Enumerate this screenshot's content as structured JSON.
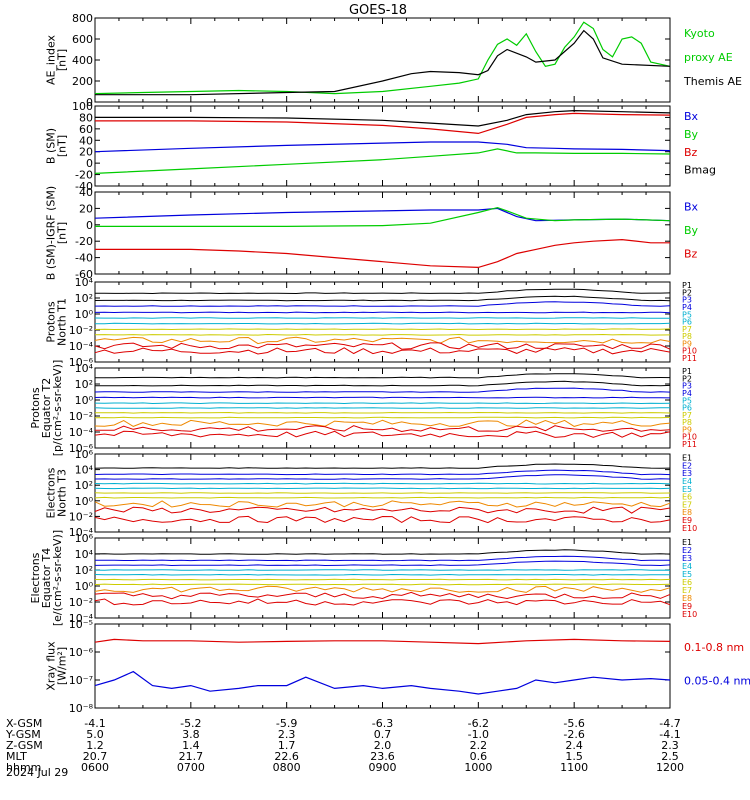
{
  "title": "GOES-18",
  "date_label": "2024 Jul 29",
  "colors": {
    "black": "#000000",
    "red": "#dd0000",
    "green": "#00cc00",
    "blue": "#0000dd",
    "cyan": "#00b0d0",
    "orange": "#ee8800",
    "yellow": "#cccc00"
  },
  "ephemeris": {
    "row_labels": [
      "X-GSM",
      "Y-GSM",
      "Z-GSM",
      "MLT",
      "hhmm"
    ],
    "columns": [
      [
        "-4.1",
        "5.0",
        "1.2",
        "20.7",
        "0600"
      ],
      [
        "-5.2",
        "3.8",
        "1.4",
        "21.7",
        "0700"
      ],
      [
        "-5.9",
        "2.3",
        "1.7",
        "22.6",
        "0800"
      ],
      [
        "-6.3",
        "0.7",
        "2.0",
        "23.6",
        "0900"
      ],
      [
        "-6.2",
        "-1.0",
        "2.2",
        "0.6",
        "1000"
      ],
      [
        "-5.6",
        "-2.6",
        "2.4",
        "1.5",
        "1100"
      ],
      [
        "-4.7",
        "-4.1",
        "2.3",
        "2.5",
        "1200"
      ]
    ]
  },
  "chart_data": [
    {
      "type": "line",
      "id": "ae",
      "ylabel": [
        "AE_index",
        "[nT]"
      ],
      "ylim": [
        0,
        800
      ],
      "yticks": [
        "0",
        "200",
        "400",
        "600",
        "800"
      ],
      "x_range_hours": [
        6,
        12
      ],
      "legend": [
        {
          "text": "Kyoto",
          "color": "green"
        },
        {
          "text": "proxy AE",
          "color": "green"
        },
        {
          "text": "Themis AE",
          "color": "black"
        }
      ],
      "series": [
        {
          "color": "green",
          "x": [
            6,
            6.5,
            7,
            7.5,
            8,
            8.5,
            9,
            9.5,
            9.8,
            10,
            10.1,
            10.2,
            10.3,
            10.4,
            10.5,
            10.6,
            10.7,
            10.8,
            10.9,
            11,
            11.1,
            11.2,
            11.3,
            11.4,
            11.5,
            11.6,
            11.7,
            11.8,
            12
          ],
          "values": [
            80,
            90,
            100,
            110,
            100,
            80,
            100,
            150,
            180,
            220,
            400,
            550,
            600,
            540,
            650,
            480,
            340,
            360,
            520,
            620,
            760,
            700,
            500,
            430,
            600,
            620,
            560,
            380,
            340
          ]
        },
        {
          "color": "black",
          "x": [
            6,
            7,
            8,
            8.5,
            9,
            9.3,
            9.5,
            9.8,
            10,
            10.1,
            10.2,
            10.3,
            10.5,
            10.6,
            10.8,
            11,
            11.1,
            11.2,
            11.3,
            11.5,
            12
          ],
          "values": [
            70,
            70,
            90,
            100,
            200,
            270,
            290,
            280,
            260,
            300,
            440,
            500,
            430,
            380,
            400,
            560,
            680,
            600,
            420,
            360,
            340
          ]
        }
      ]
    },
    {
      "type": "line",
      "id": "bsm",
      "ylabel": [
        "B (SM)",
        "[nT]"
      ],
      "ylim": [
        -40,
        100
      ],
      "yticks": [
        "-40",
        "-20",
        "0",
        "20",
        "40",
        "60",
        "80",
        "100"
      ],
      "x_range_hours": [
        6,
        12
      ],
      "legend": [
        {
          "text": "Bx",
          "color": "blue"
        },
        {
          "text": "By",
          "color": "green"
        },
        {
          "text": "Bz",
          "color": "red"
        },
        {
          "text": "Bmag",
          "color": "black"
        }
      ],
      "series": [
        {
          "color": "black",
          "x": [
            6,
            7,
            8,
            9,
            9.5,
            10,
            10.3,
            10.5,
            10.8,
            11,
            11.5,
            12
          ],
          "values": [
            80,
            80,
            79,
            75,
            70,
            65,
            75,
            85,
            90,
            92,
            90,
            88
          ]
        },
        {
          "color": "red",
          "x": [
            6,
            7,
            8,
            9,
            9.5,
            10,
            10.3,
            10.5,
            10.8,
            11,
            11.5,
            12
          ],
          "values": [
            74,
            74,
            72,
            66,
            60,
            52,
            68,
            80,
            85,
            87,
            85,
            84
          ]
        },
        {
          "color": "blue",
          "x": [
            6,
            7,
            8,
            9,
            9.5,
            10,
            10.3,
            10.5,
            10.8,
            11,
            11.5,
            12
          ],
          "values": [
            20,
            26,
            31,
            35,
            37,
            37,
            33,
            27,
            26,
            25,
            24,
            22
          ]
        },
        {
          "color": "green",
          "x": [
            6,
            7,
            8,
            9,
            9.5,
            10,
            10.2,
            10.4,
            10.6,
            11,
            11.5,
            12
          ],
          "values": [
            -18,
            -10,
            -2,
            6,
            12,
            18,
            25,
            18,
            18,
            17,
            17,
            16
          ]
        }
      ]
    },
    {
      "type": "line",
      "id": "bsm_igrf",
      "ylabel": [
        "B (SM)-IGRF (SM)",
        "[nT]"
      ],
      "ylim": [
        -60,
        40
      ],
      "yticks": [
        "-60",
        "-40",
        "-20",
        "0",
        "20",
        "40"
      ],
      "x_range_hours": [
        6,
        12
      ],
      "legend": [
        {
          "text": "Bx",
          "color": "blue"
        },
        {
          "text": "By",
          "color": "green"
        },
        {
          "text": "Bz",
          "color": "red"
        }
      ],
      "series": [
        {
          "color": "blue",
          "x": [
            6,
            7,
            8,
            9,
            9.5,
            10,
            10.2,
            10.4,
            10.6,
            11,
            11.5,
            12
          ],
          "values": [
            8,
            12,
            15,
            17,
            18,
            18,
            20,
            10,
            5,
            6,
            7,
            5
          ]
        },
        {
          "color": "green",
          "x": [
            6,
            7,
            8,
            9,
            9.5,
            10,
            10.2,
            10.3,
            10.5,
            10.8,
            11,
            11.5,
            12
          ],
          "values": [
            -2,
            -2,
            -2,
            -1,
            2,
            15,
            21,
            17,
            8,
            5,
            6,
            7,
            5
          ]
        },
        {
          "color": "red",
          "x": [
            6,
            7,
            7.5,
            8,
            8.5,
            9,
            9.5,
            10,
            10.2,
            10.4,
            10.6,
            10.8,
            11,
            11.2,
            11.5,
            11.8,
            12
          ],
          "values": [
            -30,
            -30,
            -32,
            -35,
            -40,
            -45,
            -50,
            -52,
            -45,
            -35,
            -30,
            -25,
            -22,
            -20,
            -18,
            -22,
            -22
          ]
        }
      ]
    },
    {
      "type": "line",
      "id": "prot_t1",
      "ylabel": [
        "Protons",
        "North T1"
      ],
      "ylim_log": [
        -6,
        4
      ],
      "yticks": [
        "10⁻⁶",
        "10⁻⁴",
        "10⁻²",
        "10⁰",
        "10²",
        "10⁴"
      ],
      "x_range_hours": [
        6,
        12
      ],
      "legend": [
        {
          "text": "P1",
          "color": "black"
        },
        {
          "text": "P2",
          "color": "black"
        },
        {
          "text": "P3",
          "color": "blue"
        },
        {
          "text": "P4",
          "color": "blue"
        },
        {
          "text": "P5",
          "color": "cyan"
        },
        {
          "text": "P6",
          "color": "cyan"
        },
        {
          "text": "P7",
          "color": "yellow"
        },
        {
          "text": "P8",
          "color": "yellow"
        },
        {
          "text": "P9",
          "color": "orange"
        },
        {
          "text": "P10",
          "color": "red"
        },
        {
          "text": "P11",
          "color": "red"
        }
      ],
      "levels_log": [
        2.6,
        1.7,
        1.0,
        0.2,
        -0.5,
        -1.2,
        -1.9,
        -2.6,
        -3.3,
        -4.0,
        -4.6
      ],
      "level_colors": [
        "black",
        "black",
        "blue",
        "blue",
        "cyan",
        "cyan",
        "yellow",
        "yellow",
        "orange",
        "red",
        "red"
      ]
    },
    {
      "type": "line",
      "id": "prot_t2",
      "ylabel": [
        "Protons",
        "Equator T2",
        "[p/(cm²-s-sr-keV)]"
      ],
      "ylim_log": [
        -6,
        4
      ],
      "yticks": [
        "10⁻⁶",
        "10⁻⁴",
        "10⁻²",
        "10⁰",
        "10²",
        "10⁴"
      ],
      "x_range_hours": [
        6,
        12
      ],
      "legend": [
        {
          "text": "P1",
          "color": "black"
        },
        {
          "text": "P2",
          "color": "black"
        },
        {
          "text": "P3",
          "color": "blue"
        },
        {
          "text": "P4",
          "color": "blue"
        },
        {
          "text": "P5",
          "color": "cyan"
        },
        {
          "text": "P6",
          "color": "cyan"
        },
        {
          "text": "P7",
          "color": "yellow"
        },
        {
          "text": "P8",
          "color": "yellow"
        },
        {
          "text": "P9",
          "color": "orange"
        },
        {
          "text": "P10",
          "color": "red"
        },
        {
          "text": "P11",
          "color": "red"
        }
      ],
      "levels_log": [
        2.8,
        1.8,
        1.0,
        0.3,
        -0.4,
        -1.0,
        -1.6,
        -2.2,
        -2.9,
        -3.6,
        -4.3
      ],
      "level_colors": [
        "black",
        "black",
        "blue",
        "blue",
        "cyan",
        "cyan",
        "yellow",
        "yellow",
        "orange",
        "red",
        "red"
      ]
    },
    {
      "type": "line",
      "id": "elec_t3",
      "ylabel": [
        "Electrons",
        "North T3"
      ],
      "ylim_log": [
        -4,
        6
      ],
      "yticks": [
        "10⁻⁴",
        "10⁻²",
        "10⁰",
        "10²",
        "10⁴",
        "10⁶"
      ],
      "x_range_hours": [
        6,
        12
      ],
      "legend": [
        {
          "text": "E1",
          "color": "black"
        },
        {
          "text": "E2",
          "color": "blue"
        },
        {
          "text": "E3",
          "color": "blue"
        },
        {
          "text": "E4",
          "color": "cyan"
        },
        {
          "text": "E5",
          "color": "cyan"
        },
        {
          "text": "E6",
          "color": "yellow"
        },
        {
          "text": "E7",
          "color": "yellow"
        },
        {
          "text": "E8",
          "color": "orange"
        },
        {
          "text": "E9",
          "color": "red"
        },
        {
          "text": "E10",
          "color": "red"
        }
      ],
      "levels_log": [
        4.2,
        3.4,
        2.8,
        2.2,
        1.6,
        1.0,
        0.4,
        -0.4,
        -1.2,
        -2.4
      ],
      "level_colors": [
        "black",
        "blue",
        "blue",
        "cyan",
        "cyan",
        "yellow",
        "yellow",
        "orange",
        "red",
        "red"
      ]
    },
    {
      "type": "line",
      "id": "elec_t4",
      "ylabel": [
        "Electrons",
        "Equator T4",
        "[e/(cm²-s-sr-keV)]"
      ],
      "ylim_log": [
        -4,
        6
      ],
      "yticks": [
        "10⁻⁴",
        "10⁻²",
        "10⁰",
        "10²",
        "10⁴",
        "10⁶"
      ],
      "x_range_hours": [
        6,
        12
      ],
      "legend": [
        {
          "text": "E1",
          "color": "black"
        },
        {
          "text": "E2",
          "color": "blue"
        },
        {
          "text": "E3",
          "color": "blue"
        },
        {
          "text": "E4",
          "color": "cyan"
        },
        {
          "text": "E5",
          "color": "cyan"
        },
        {
          "text": "E6",
          "color": "yellow"
        },
        {
          "text": "E7",
          "color": "yellow"
        },
        {
          "text": "E8",
          "color": "orange"
        },
        {
          "text": "E9",
          "color": "red"
        },
        {
          "text": "E10",
          "color": "red"
        }
      ],
      "levels_log": [
        4.0,
        3.2,
        2.6,
        2.0,
        1.4,
        0.8,
        0.2,
        -0.4,
        -1.2,
        -2.0
      ],
      "level_colors": [
        "black",
        "blue",
        "blue",
        "cyan",
        "cyan",
        "yellow",
        "yellow",
        "orange",
        "red",
        "red"
      ]
    },
    {
      "type": "line",
      "id": "xray",
      "ylabel": [
        "Xray flux",
        "[W/m²]"
      ],
      "ylim_log": [
        -8,
        -5
      ],
      "yticks": [
        "10⁻⁸",
        "10⁻⁷",
        "10⁻⁶",
        "10⁻⁵"
      ],
      "x_range_hours": [
        6,
        12
      ],
      "legend": [
        {
          "text": "0.1-0.8 nm",
          "color": "red"
        },
        {
          "text": "0.05-0.4 nm",
          "color": "blue"
        }
      ],
      "series": [
        {
          "color": "red",
          "x": [
            6,
            6.2,
            6.5,
            7,
            7.5,
            8,
            8.5,
            9,
            9.5,
            10,
            10.5,
            11,
            11.5,
            12
          ],
          "values": [
            -5.65,
            -5.55,
            -5.6,
            -5.6,
            -5.65,
            -5.62,
            -5.6,
            -5.6,
            -5.65,
            -5.7,
            -5.6,
            -5.55,
            -5.6,
            -5.62
          ]
        },
        {
          "color": "blue",
          "x": [
            6,
            6.2,
            6.4,
            6.6,
            6.8,
            7,
            7.2,
            7.5,
            7.7,
            8,
            8.2,
            8.5,
            8.8,
            9,
            9.3,
            9.5,
            9.8,
            10,
            10.2,
            10.4,
            10.6,
            10.8,
            11,
            11.2,
            11.5,
            11.8,
            12
          ],
          "values": [
            -7.2,
            -7.0,
            -6.7,
            -7.2,
            -7.3,
            -7.2,
            -7.4,
            -7.3,
            -7.2,
            -7.2,
            -6.9,
            -7.3,
            -7.2,
            -7.3,
            -7.2,
            -7.3,
            -7.4,
            -7.5,
            -7.4,
            -7.3,
            -7.0,
            -7.1,
            -7.0,
            -6.9,
            -7.0,
            -6.95,
            -7.0
          ]
        }
      ]
    }
  ]
}
